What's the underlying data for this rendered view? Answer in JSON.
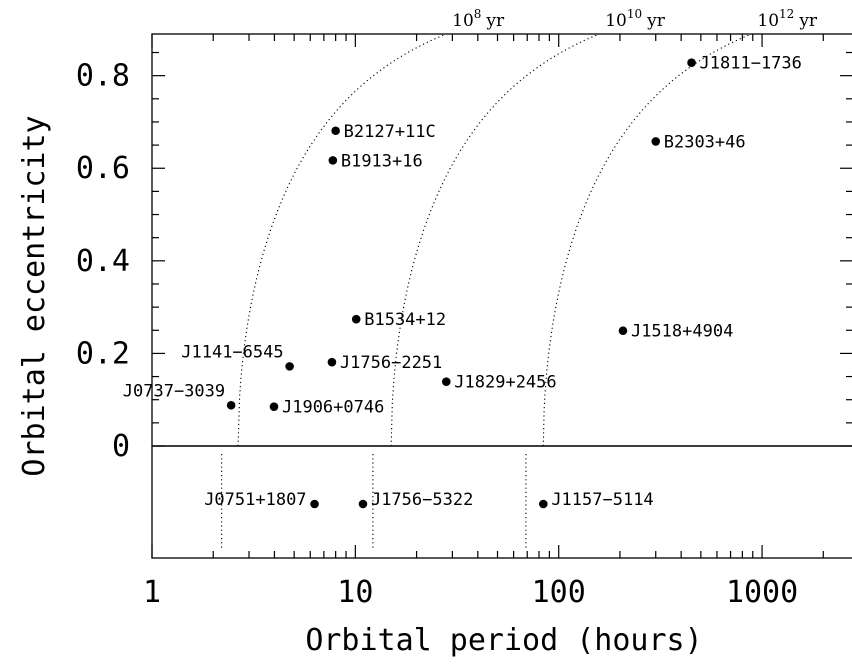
{
  "chart_data": {
    "type": "scatter",
    "xlabel": "Orbital period (hours)",
    "ylabel": "Orbital eccentricity",
    "xscale": "log",
    "xlim": [
      1,
      2800
    ],
    "ylim": [
      0,
      0.89
    ],
    "lower_panel_ylim": [
      -0.245,
      0
    ],
    "x_ticks": [
      1,
      10,
      100,
      1000
    ],
    "x_tick_labels": [
      "1",
      "10",
      "100",
      "1000"
    ],
    "y_ticks": [
      0,
      0.2,
      0.4,
      0.6,
      0.8
    ],
    "y_tick_labels": [
      "0",
      "0.2",
      "0.4",
      "0.6",
      "0.8"
    ],
    "grid": false,
    "points": [
      {
        "label": "J1811−1736",
        "x": 450,
        "y": 0.828
      },
      {
        "label": "B2127+11C",
        "x": 8.0,
        "y": 0.681
      },
      {
        "label": "B2303+46",
        "x": 300,
        "y": 0.658
      },
      {
        "label": "B1913+16",
        "x": 7.75,
        "y": 0.617
      },
      {
        "label": "B1534+12",
        "x": 10.1,
        "y": 0.274
      },
      {
        "label": "J1518+4904",
        "x": 207,
        "y": 0.249
      },
      {
        "label": "J1141−6545",
        "x": 4.75,
        "y": 0.172
      },
      {
        "label": "J1756−2251",
        "x": 7.67,
        "y": 0.181
      },
      {
        "label": "J1829+2456",
        "x": 28.0,
        "y": 0.139
      },
      {
        "label": "J0737−3039",
        "x": 2.45,
        "y": 0.088
      },
      {
        "label": "J1906+0746",
        "x": 3.98,
        "y": 0.085
      }
    ],
    "circular_points": [
      {
        "label": "J0751+1807",
        "x": 6.3
      },
      {
        "label": "J1756−5322",
        "x": 10.9
      },
      {
        "label": "J1157−5114",
        "x": 84
      }
    ],
    "lifetime_curves": [
      {
        "label_base": "10",
        "label_exp": "8",
        "label_unit": "yr",
        "p0": 2.65,
        "p_circ": 2.2
      },
      {
        "label_base": "10",
        "label_exp": "10",
        "label_unit": "yr",
        "p0": 15.0,
        "p_circ": 12.2
      },
      {
        "label_base": "10",
        "label_exp": "12",
        "label_unit": "yr",
        "p0": 84.0,
        "p_circ": 69.0
      }
    ]
  }
}
